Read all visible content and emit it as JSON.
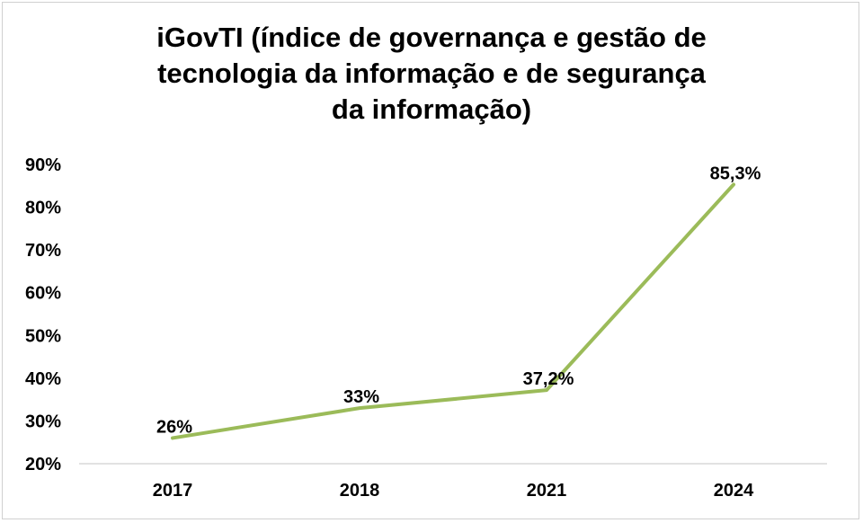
{
  "chart_data": {
    "type": "line",
    "title": "iGovTI (índice de governança e gestão de\ntecnologia da informação e de segurança\nda informação)",
    "xlabel": "",
    "ylabel": "",
    "categories": [
      "2017",
      "2018",
      "2021",
      "2024"
    ],
    "series": [
      {
        "values": [
          26,
          33,
          37.2,
          85.3
        ],
        "data_labels": [
          "26%",
          "33%",
          "37,2%",
          "85,3%"
        ],
        "color": "#9bbb59"
      }
    ],
    "ylim": [
      20,
      90
    ],
    "y_ticks": [
      20,
      30,
      40,
      50,
      60,
      70,
      80,
      90
    ],
    "y_tick_labels": [
      "20%",
      "30%",
      "40%",
      "50%",
      "60%",
      "70%",
      "80%",
      "90%"
    ],
    "grid": false,
    "legend": "none",
    "axis_line_color": "#d9d9d9"
  }
}
